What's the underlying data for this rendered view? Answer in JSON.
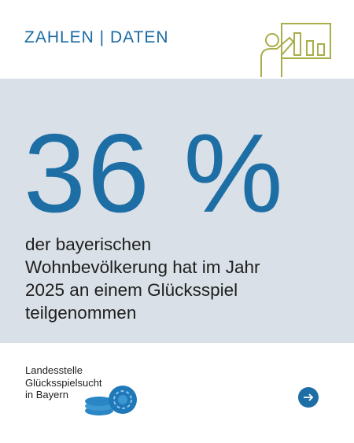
{
  "header": {
    "title": "ZAHLEN | DATEN"
  },
  "highlight": "36 %",
  "description": [
    "der bayerischen",
    "Wohnbevölkerung hat im Jahr",
    "2025 an einem Glücksspiel",
    "teilgenommen"
  ],
  "footer": {
    "logo_lines": [
      "Landesstelle",
      "Glücksspielsucht",
      "in Bayern"
    ]
  }
}
